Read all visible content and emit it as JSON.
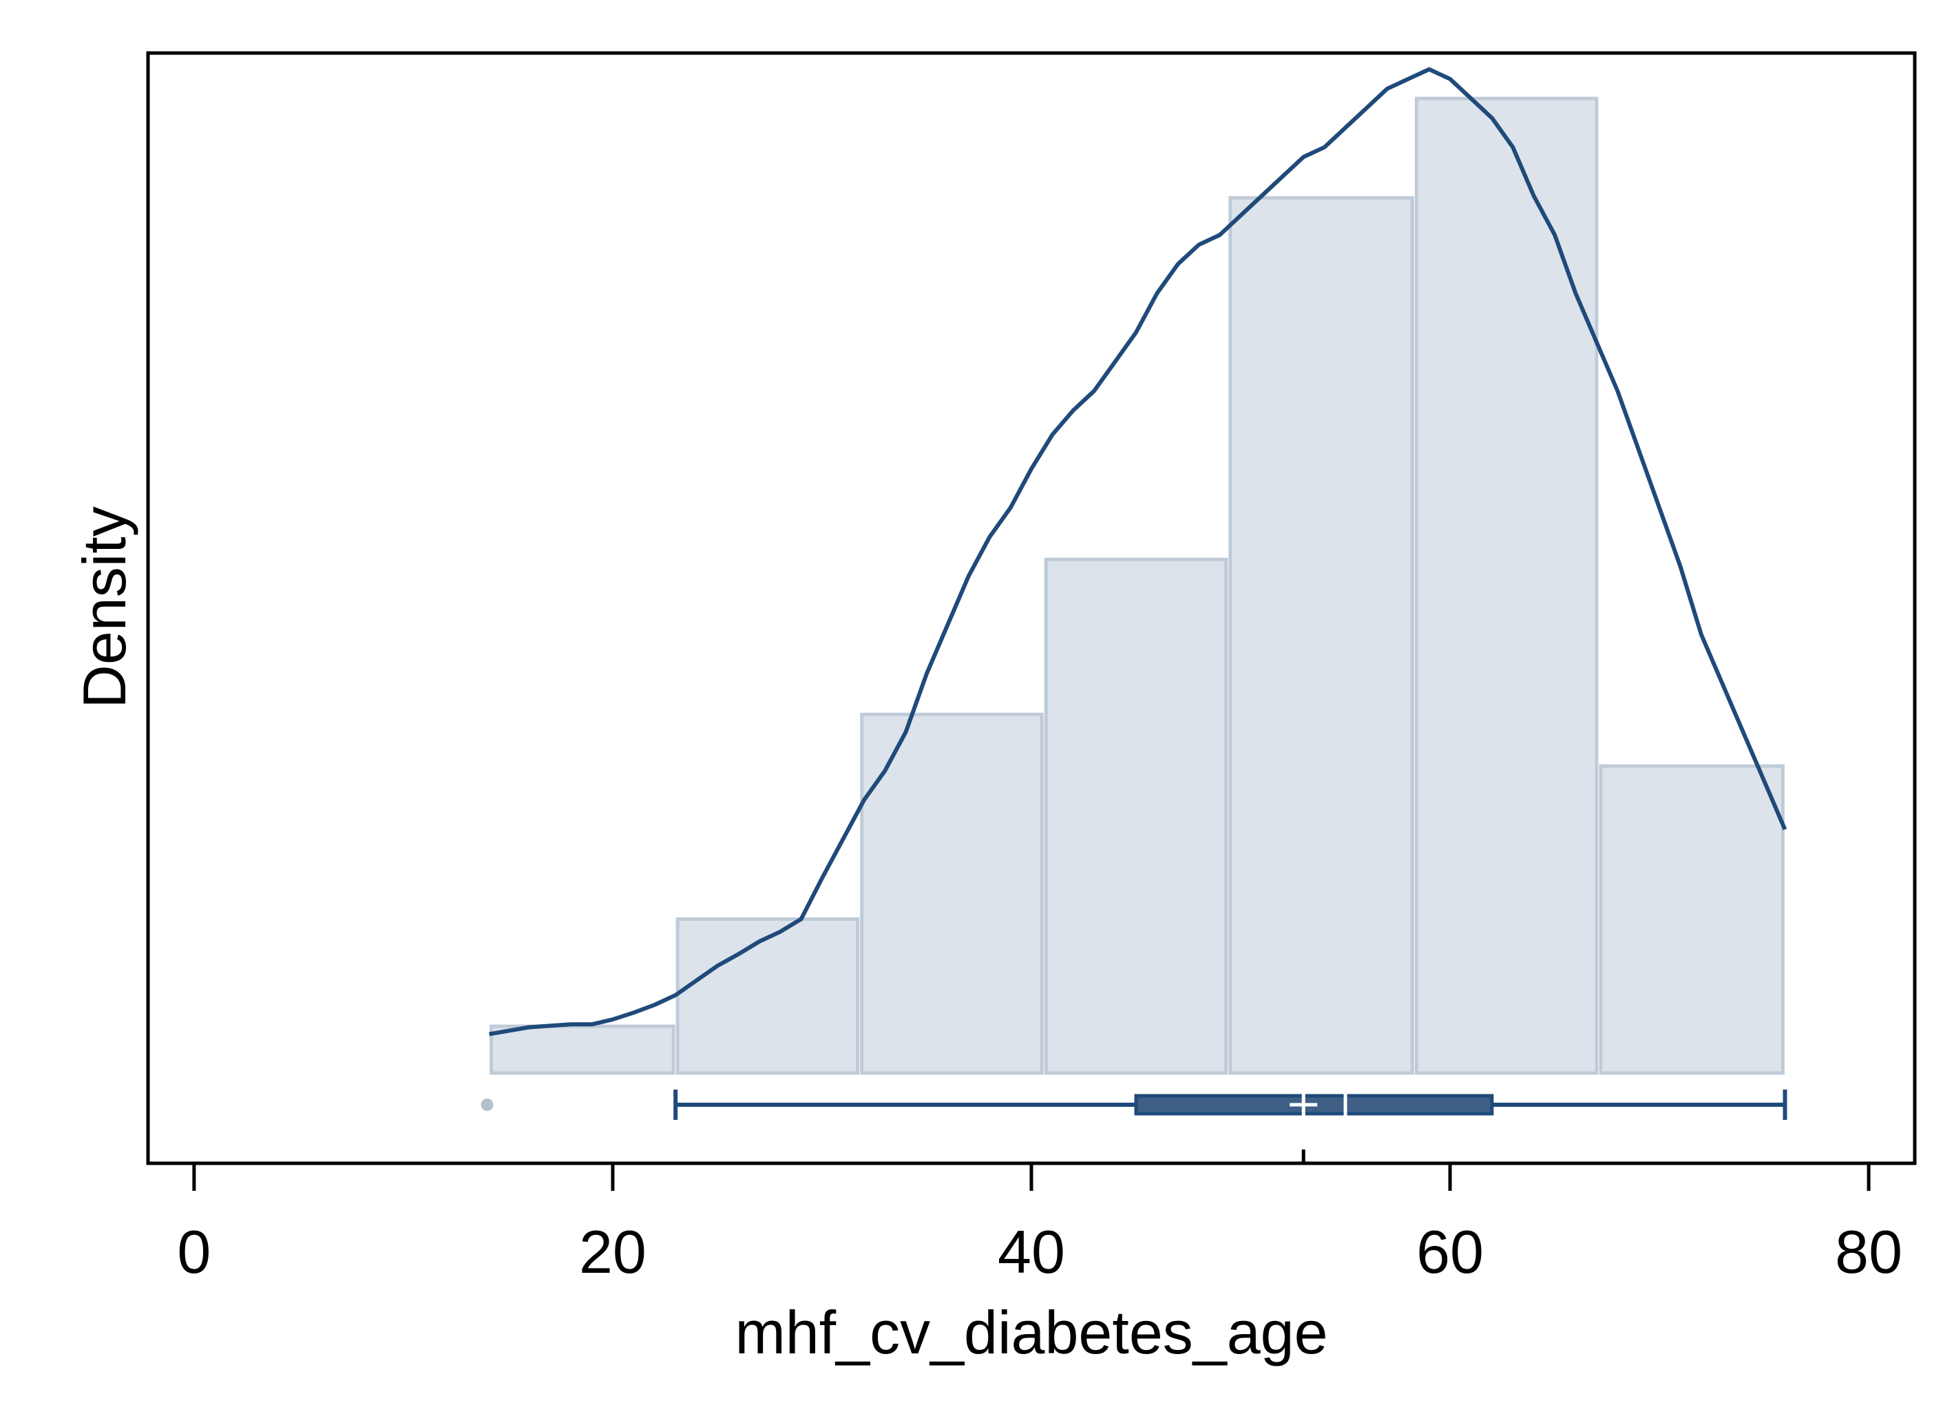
{
  "chart_data": {
    "type": "histogram",
    "title": "",
    "xlabel": "mhf_cv_diabetes_age",
    "ylabel": "Density",
    "xlim": [
      -2.2,
      82.2
    ],
    "x_ticks": [
      0,
      20,
      40,
      60,
      80
    ],
    "x_tick_labels": [
      "0",
      "20",
      "40",
      "60",
      "80"
    ],
    "y_ticks_shown": false,
    "grid": false,
    "legend": "none",
    "histogram": {
      "bin_edges": [
        14.1,
        23,
        31.8,
        40.6,
        49.4,
        58.3,
        67.1,
        76
      ],
      "density": [
        0.0048,
        0.0158,
        0.0368,
        0.0527,
        0.0898,
        0.1,
        0.0315
      ],
      "fill_color": "#dce3ea",
      "edge_color": "#bfccd7"
    },
    "kde_curve": {
      "color": "#1f4a7a",
      "points": [
        [
          14.1,
          0.004
        ],
        [
          16,
          0.0047
        ],
        [
          18,
          0.005
        ],
        [
          19,
          0.005
        ],
        [
          20,
          0.0055
        ],
        [
          21,
          0.0062
        ],
        [
          22,
          0.007
        ],
        [
          23,
          0.008
        ],
        [
          24,
          0.0095
        ],
        [
          25,
          0.011
        ],
        [
          26,
          0.0122
        ],
        [
          27,
          0.0135
        ],
        [
          28,
          0.0145
        ],
        [
          29,
          0.0158
        ],
        [
          30,
          0.02
        ],
        [
          31,
          0.024
        ],
        [
          32,
          0.028
        ],
        [
          33,
          0.031
        ],
        [
          34,
          0.035
        ],
        [
          35,
          0.041
        ],
        [
          36,
          0.046
        ],
        [
          37,
          0.051
        ],
        [
          38,
          0.055
        ],
        [
          39,
          0.058
        ],
        [
          40,
          0.062
        ],
        [
          41,
          0.0655
        ],
        [
          42,
          0.068
        ],
        [
          43,
          0.07
        ],
        [
          44,
          0.073
        ],
        [
          45,
          0.076
        ],
        [
          46,
          0.08
        ],
        [
          47,
          0.083
        ],
        [
          48,
          0.085
        ],
        [
          49,
          0.086
        ],
        [
          50,
          0.088
        ],
        [
          51,
          0.09
        ],
        [
          52,
          0.092
        ],
        [
          53,
          0.094
        ],
        [
          54,
          0.095
        ],
        [
          55,
          0.097
        ],
        [
          56,
          0.099
        ],
        [
          57,
          0.101
        ],
        [
          58,
          0.102
        ],
        [
          59,
          0.103
        ],
        [
          60,
          0.102
        ],
        [
          61,
          0.1
        ],
        [
          62,
          0.098
        ],
        [
          63,
          0.095
        ],
        [
          64,
          0.09
        ],
        [
          65,
          0.086
        ],
        [
          66,
          0.08
        ],
        [
          67,
          0.075
        ],
        [
          68,
          0.07
        ],
        [
          69,
          0.064
        ],
        [
          70,
          0.058
        ],
        [
          71,
          0.052
        ],
        [
          72,
          0.045
        ],
        [
          73,
          0.04
        ],
        [
          74,
          0.035
        ],
        [
          75,
          0.03
        ],
        [
          76,
          0.025
        ]
      ]
    },
    "boxplot": {
      "color": "#1f4a7a",
      "whisker_low": 23,
      "q1": 45,
      "median": 55,
      "mean": 53,
      "q3": 62,
      "whisker_high": 76,
      "outliers": [
        14
      ]
    }
  }
}
